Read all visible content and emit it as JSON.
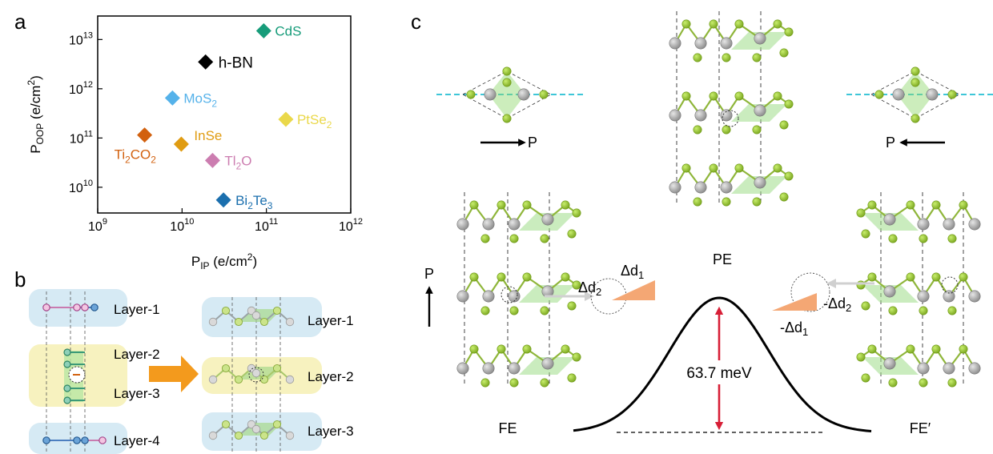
{
  "panel_labels": {
    "a": "a",
    "b": "b",
    "c": "c"
  },
  "colors": {
    "CdS": "#179c7a",
    "h-BN": "#000000",
    "MoS2": "#55b2ea",
    "PtSe2": "#ead84a",
    "InSe": "#e09c12",
    "Ti2CO2": "#d2610f",
    "Tl2O": "#cc7db0",
    "Bi2Te3": "#1b6fae",
    "selenium": "#97c930",
    "metal": "#a6a6a6",
    "barrier": "#d71e36",
    "delta": "#f4a774",
    "dashed_cyan": "#3ec6d8",
    "layer_blue": "#d6eaf4",
    "layer_yellow": "#f7f2bf"
  },
  "chart_data": {
    "type": "scatter",
    "xlabel": "P_IP (e/cm^2)",
    "ylabel": "P_OOP (e/cm^2)",
    "xscale": "log",
    "yscale": "log",
    "xlim": [
      1000000000.0,
      1000000000000.0
    ],
    "ylim": [
      3000000000.0,
      30000000000000.0
    ],
    "xticks": [
      "10^9",
      "10^10",
      "10^11",
      "10^12"
    ],
    "yticks": [
      "10^10",
      "10^11",
      "10^12",
      "10^13"
    ],
    "marker": "diamond",
    "points": [
      {
        "name": "CdS",
        "x": 93000000000.0,
        "y": 15000000000000.0
      },
      {
        "name": "h-BN",
        "x": 19000000000.0,
        "y": 3500000000000.0
      },
      {
        "name": "MoS2",
        "x": 7700000000.0,
        "y": 650000000000.0
      },
      {
        "name": "PtSe2",
        "x": 170000000000.0,
        "y": 240000000000.0
      },
      {
        "name": "InSe",
        "x": 9800000000.0,
        "y": 75000000000.0
      },
      {
        "name": "Ti2CO2",
        "x": 3600000000.0,
        "y": 115000000000.0
      },
      {
        "name": "Tl2O",
        "x": 23000000000.0,
        "y": 35000000000.0
      },
      {
        "name": "Bi2Te3",
        "x": 31000000000.0,
        "y": 5500000000.0
      }
    ]
  },
  "panel_a": {
    "x_axis": {
      "base": "P",
      "sub": "IP",
      "unit_pre": " (e/cm",
      "unit_sup": "2",
      "unit_post": ")"
    },
    "y_axis": {
      "base": "P",
      "sub": "OOP",
      "unit_pre": " (e/cm",
      "unit_sup": "2",
      "unit_post": ")"
    },
    "tick_base": "10",
    "x_tick_exponents": [
      "9",
      "10",
      "11",
      "12"
    ],
    "y_tick_exponents": [
      "10",
      "11",
      "12",
      "13"
    ],
    "point_labels": {
      "CdS": {
        "main": "CdS"
      },
      "h-BN": {
        "main": "h-BN"
      },
      "MoS2": {
        "main": "MoS",
        "sub": "2"
      },
      "PtSe2": {
        "main": "PtSe",
        "sub": "2"
      },
      "InSe": {
        "main": "InSe"
      },
      "Ti2CO2": {
        "main": "Ti",
        "sub": "2",
        "main2": "CO",
        "sub2": "2"
      },
      "Tl2O": {
        "main": "Tl",
        "sub": "2",
        "main2": "O"
      },
      "Bi2Te3": {
        "main": "Bi",
        "sub": "2",
        "main2": "Te",
        "sub2": "3"
      }
    }
  },
  "panel_b": {
    "left_layers": [
      "Layer-1",
      "Layer-2",
      "Layer-3",
      "Layer-4"
    ],
    "right_layers": [
      "Layer-1",
      "Layer-2",
      "Layer-3"
    ]
  },
  "panel_c": {
    "polarization": "P",
    "pe_label": "PE",
    "fe_label": "FE",
    "fe_prime_label": "FE′",
    "barrier": "63.7 meV",
    "delta_d1": "Δd",
    "delta_d2": "Δd",
    "neg_delta_d1": "-Δd",
    "neg_delta_d2": "-Δd",
    "sub1": "1",
    "sub2": "2"
  }
}
